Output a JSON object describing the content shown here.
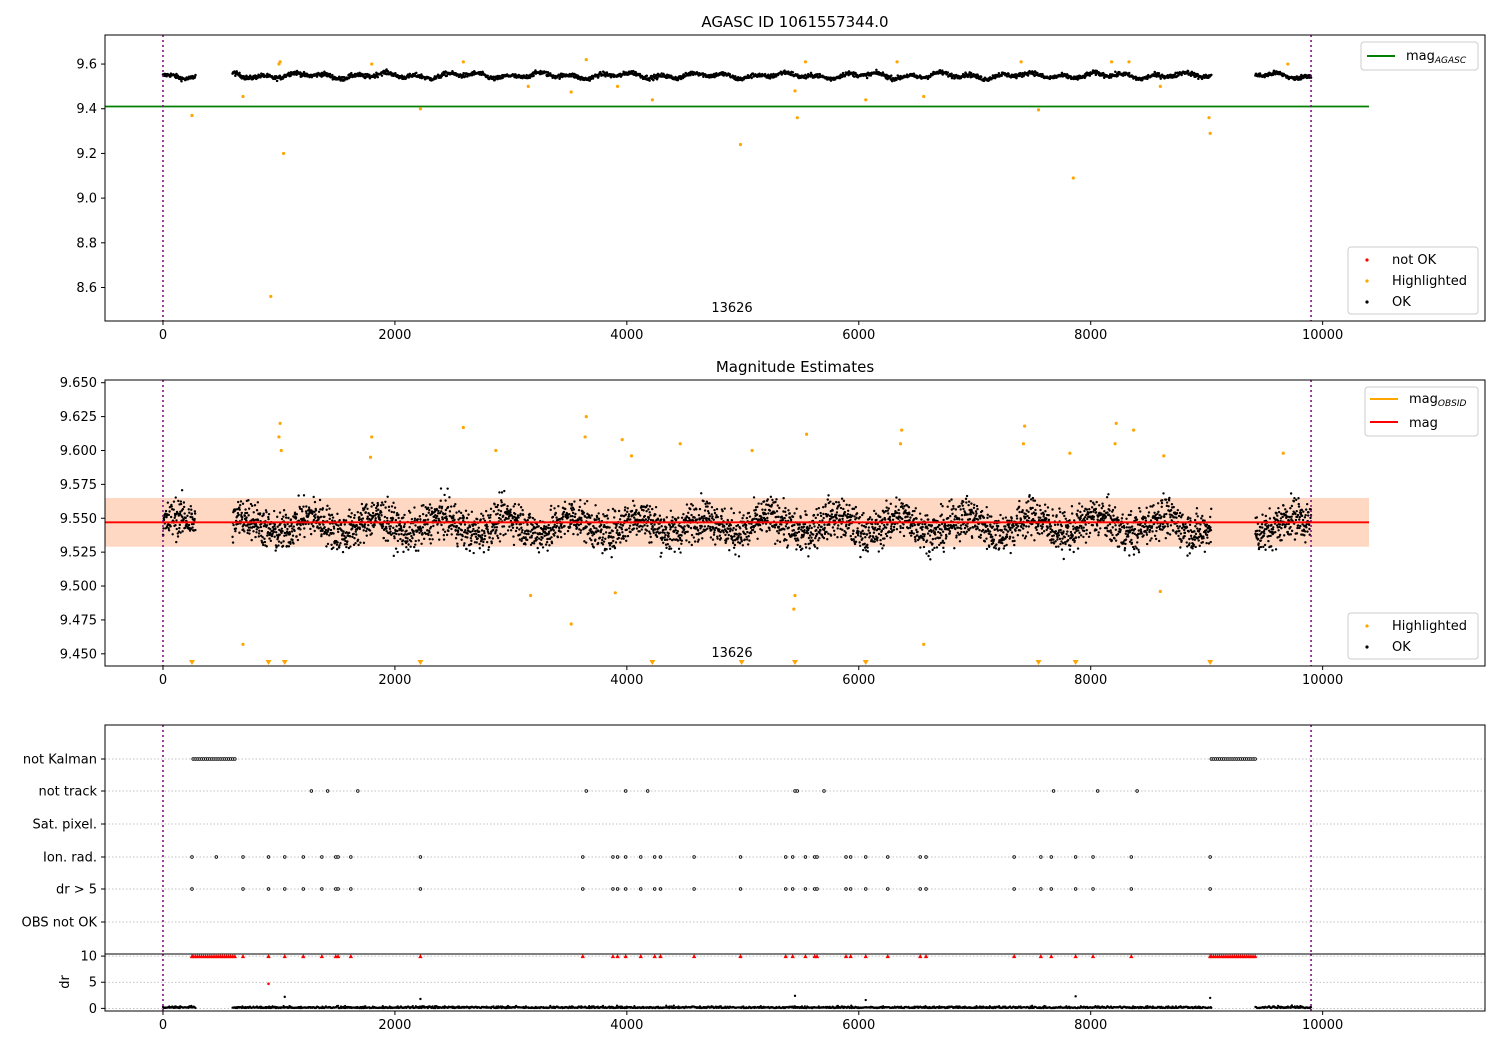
{
  "chart_data": [
    {
      "type": "scatter",
      "title": "AGASC ID 1061557344.0",
      "xlim": [
        -500,
        11400
      ],
      "ylim": [
        8.45,
        9.73
      ],
      "x_ticks": [
        0,
        2000,
        4000,
        6000,
        8000,
        10000
      ],
      "y_ticks": [
        8.6,
        8.8,
        9.0,
        9.2,
        9.4,
        9.6
      ],
      "grid": false,
      "obsid_label": {
        "text": "13626",
        "x": 4950
      },
      "vlines": [
        0,
        9900
      ],
      "hline": {
        "y": 9.41,
        "x": [
          -500,
          10400
        ],
        "color": "#008000"
      },
      "ok_band": {
        "center": 9.548,
        "amp": 0.015,
        "noise": 0.013
      },
      "ok_segments": [
        [
          0,
          280
        ],
        [
          600,
          9040
        ],
        [
          9420,
          9900
        ]
      ],
      "highlighted_points": [
        [
          250,
          9.37
        ],
        [
          690,
          9.455
        ],
        [
          930,
          8.56
        ],
        [
          1000,
          9.6
        ],
        [
          1010,
          9.61
        ],
        [
          1040,
          9.2
        ],
        [
          1800,
          9.6
        ],
        [
          2220,
          9.4
        ],
        [
          2590,
          9.61
        ],
        [
          3150,
          9.5
        ],
        [
          3520,
          9.475
        ],
        [
          3650,
          9.62
        ],
        [
          3920,
          9.5
        ],
        [
          4220,
          9.44
        ],
        [
          4980,
          9.24
        ],
        [
          5450,
          9.48
        ],
        [
          5470,
          9.36
        ],
        [
          5540,
          9.61
        ],
        [
          6060,
          9.44
        ],
        [
          6330,
          9.61
        ],
        [
          6560,
          9.455
        ],
        [
          7400,
          9.61
        ],
        [
          7550,
          9.395
        ],
        [
          7850,
          9.09
        ],
        [
          8180,
          9.61
        ],
        [
          8330,
          9.61
        ],
        [
          8600,
          9.5
        ],
        [
          9020,
          9.36
        ],
        [
          9030,
          9.29
        ],
        [
          9700,
          9.6
        ]
      ],
      "series_colors": {
        "ok": "#000000",
        "highlighted": "#ffa500",
        "not_ok": "#ff0000"
      },
      "legend_upper": {
        "entries": [
          {
            "label": "mag",
            "sub": "AGASC",
            "color": "#008000"
          }
        ],
        "position": "upper right"
      },
      "legend_lower": {
        "entries": [
          {
            "label": "not OK",
            "color": "#ff0000"
          },
          {
            "label": "Highlighted",
            "color": "#ffa500"
          },
          {
            "label": "OK",
            "color": "#000000"
          }
        ],
        "position": "lower right"
      }
    },
    {
      "type": "scatter",
      "title": "Magnitude Estimates",
      "xlim": [
        -500,
        11400
      ],
      "ylim": [
        9.441,
        9.652
      ],
      "x_ticks": [
        0,
        2000,
        4000,
        6000,
        8000,
        10000
      ],
      "y_ticks": [
        9.45,
        9.475,
        9.5,
        9.525,
        9.55,
        9.575,
        9.6,
        9.625,
        9.65
      ],
      "grid": false,
      "obsid_label": {
        "text": "13626",
        "x": 4950
      },
      "vlines": [
        0,
        9900
      ],
      "mag_line": {
        "y": 9.547,
        "x": [
          -500,
          10400
        ],
        "color": "#ff0000",
        "band": [
          9.529,
          9.565
        ]
      },
      "mag_obsid_line": {
        "y": 9.547,
        "x": [
          -500,
          10400
        ],
        "color": "#ffa500",
        "band": [
          9.529,
          9.565
        ]
      },
      "ok_band": {
        "center": 9.545,
        "amp": 0.006,
        "noise": 0.014
      },
      "ok_segments": [
        [
          0,
          280
        ],
        [
          600,
          9040
        ],
        [
          9420,
          9900
        ]
      ],
      "highlighted_points": [
        [
          1000,
          9.61
        ],
        [
          1010,
          9.62
        ],
        [
          1020,
          9.6
        ],
        [
          1800,
          9.61
        ],
        [
          1790,
          9.595
        ],
        [
          2590,
          9.617
        ],
        [
          2870,
          9.6
        ],
        [
          3170,
          9.493
        ],
        [
          3520,
          9.472
        ],
        [
          3650,
          9.625
        ],
        [
          3640,
          9.61
        ],
        [
          3900,
          9.495
        ],
        [
          3960,
          9.608
        ],
        [
          4040,
          9.596
        ],
        [
          4460,
          9.605
        ],
        [
          5080,
          9.6
        ],
        [
          5450,
          9.493
        ],
        [
          5440,
          9.483
        ],
        [
          5550,
          9.612
        ],
        [
          6370,
          9.615
        ],
        [
          6360,
          9.605
        ],
        [
          6560,
          9.457
        ],
        [
          7430,
          9.618
        ],
        [
          7420,
          9.605
        ],
        [
          7820,
          9.598
        ],
        [
          8220,
          9.62
        ],
        [
          8210,
          9.605
        ],
        [
          8370,
          9.615
        ],
        [
          8630,
          9.596
        ],
        [
          8600,
          9.496
        ],
        [
          9660,
          9.598
        ],
        [
          690,
          9.457
        ]
      ],
      "clipped_low_x": [
        250,
        910,
        1050,
        2220,
        4220,
        4990,
        5450,
        6060,
        7550,
        7870,
        9030
      ],
      "series_colors": {
        "ok": "#000000",
        "highlighted": "#ffa500"
      },
      "legend_upper": {
        "entries": [
          {
            "label": "mag",
            "sub": "OBSID",
            "color": "#ffa500"
          },
          {
            "label": "mag",
            "color": "#ff0000"
          }
        ],
        "position": "upper right"
      },
      "legend_lower": {
        "entries": [
          {
            "label": "Highlighted",
            "color": "#ffa500"
          },
          {
            "label": "OK",
            "color": "#000000"
          }
        ],
        "position": "lower right"
      }
    },
    {
      "type": "scatter",
      "title": "",
      "xlim": [
        -500,
        11400
      ],
      "x_ticks": [
        0,
        2000,
        4000,
        6000,
        8000,
        10000
      ],
      "vlines": [
        0,
        9900
      ],
      "flag_labels": [
        "not Kalman",
        "not track",
        "Sat. pixel.",
        "Ion. rad.",
        "dr > 5",
        "OBS not OK"
      ],
      "flag_events": {
        "not Kalman": [
          [
            260,
            620
          ],
          [
            9040,
            9420
          ]
        ],
        "not track": [
          1280,
          1420,
          1680,
          3650,
          3990,
          4180,
          5450,
          5470,
          5700,
          7680,
          8060,
          8400
        ],
        "Sat. pixel.": [],
        "Ion. rad.": [
          250,
          460,
          690,
          910,
          1050,
          1210,
          1370,
          1490,
          1510,
          1620,
          2220,
          3620,
          3880,
          3920,
          3990,
          4120,
          4240,
          4290,
          4580,
          4980,
          5370,
          5430,
          5540,
          5620,
          5640,
          5890,
          5930,
          6060,
          6250,
          6530,
          6580,
          7340,
          7570,
          7660,
          7870,
          8020,
          8350,
          9030
        ],
        "dr > 5": [
          250,
          690,
          910,
          1050,
          1210,
          1370,
          1490,
          1510,
          1620,
          2220,
          3620,
          3880,
          3920,
          3990,
          4120,
          4240,
          4290,
          4580,
          4980,
          5370,
          5430,
          5540,
          5620,
          5640,
          5890,
          5930,
          6060,
          6250,
          6530,
          6580,
          7340,
          7570,
          7660,
          7870,
          8020,
          8350,
          9030
        ],
        "OBS not OK": []
      },
      "dr_panel": {
        "ylabel": "dr",
        "ylim": [
          -0.5,
          10.4
        ],
        "y_ticks": [
          0,
          5,
          10
        ],
        "clip_value": 10,
        "ok_segments": [
          [
            0,
            280
          ],
          [
            600,
            9040
          ],
          [
            9420,
            9900
          ]
        ],
        "high_points": [
          [
            1050,
            2.2
          ],
          [
            2220,
            1.8
          ],
          [
            5450,
            2.4
          ],
          [
            6060,
            1.6
          ],
          [
            7870,
            2.3
          ],
          [
            9030,
            2.0
          ]
        ],
        "red_point": [
          910,
          4.7
        ]
      }
    }
  ]
}
